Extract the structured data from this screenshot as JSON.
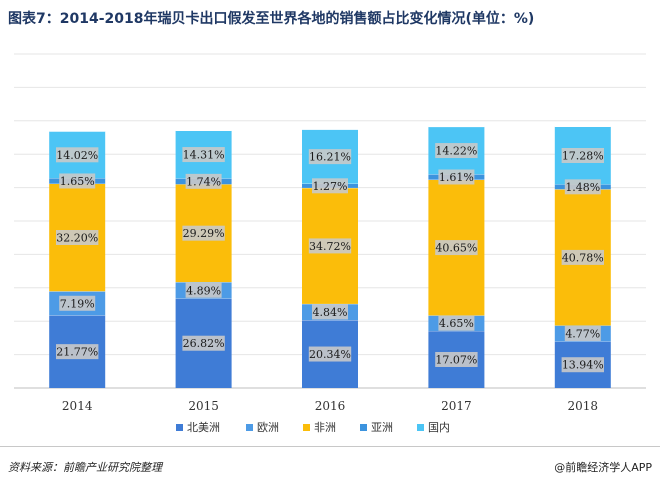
{
  "title": "图表7：2014-2018年瑞贝卡出口假发至世界各地的销售额占比变化情况(单位：%)",
  "source": "资料来源：前瞻产业研究院整理",
  "brand": "@前瞻经济学人APP",
  "chart_data": {
    "type": "bar",
    "stacked": true,
    "categories": [
      "2014",
      "2015",
      "2016",
      "2017",
      "2018"
    ],
    "series": [
      {
        "name": "北美洲",
        "color": "#3f7cd6",
        "values": [
          21.77,
          26.82,
          20.34,
          17.07,
          13.94
        ],
        "labels": [
          "21.77%",
          "26.82%",
          "20.34%",
          "17.07%",
          "13.94%"
        ]
      },
      {
        "name": "欧洲",
        "color": "#4d9be6",
        "values": [
          7.19,
          4.89,
          4.84,
          4.65,
          4.77
        ],
        "labels": [
          "7.19%",
          "4.89%",
          "4.84%",
          "4.65%",
          "4.77%"
        ]
      },
      {
        "name": "非洲",
        "color": "#fbbd0a",
        "values": [
          32.2,
          29.29,
          34.72,
          40.65,
          40.78
        ],
        "labels": [
          "32.20%",
          "29.29%",
          "34.72%",
          "40.65%",
          "40.78%"
        ]
      },
      {
        "name": "亚洲",
        "color": "#3c93de",
        "values": [
          1.65,
          1.74,
          1.27,
          1.61,
          1.48
        ],
        "labels": [
          "1.65%",
          "1.74%",
          "1.27%",
          "1.61%",
          "1.48%"
        ]
      },
      {
        "name": "国内",
        "color": "#4cc5f5",
        "values": [
          14.02,
          14.31,
          16.21,
          14.22,
          17.28
        ],
        "labels": [
          "14.02%",
          "14.31%",
          "16.21%",
          "14.22%",
          "17.28%"
        ]
      }
    ],
    "ylim": [
      0,
      100
    ],
    "grid": true,
    "legend": "bottom"
  }
}
